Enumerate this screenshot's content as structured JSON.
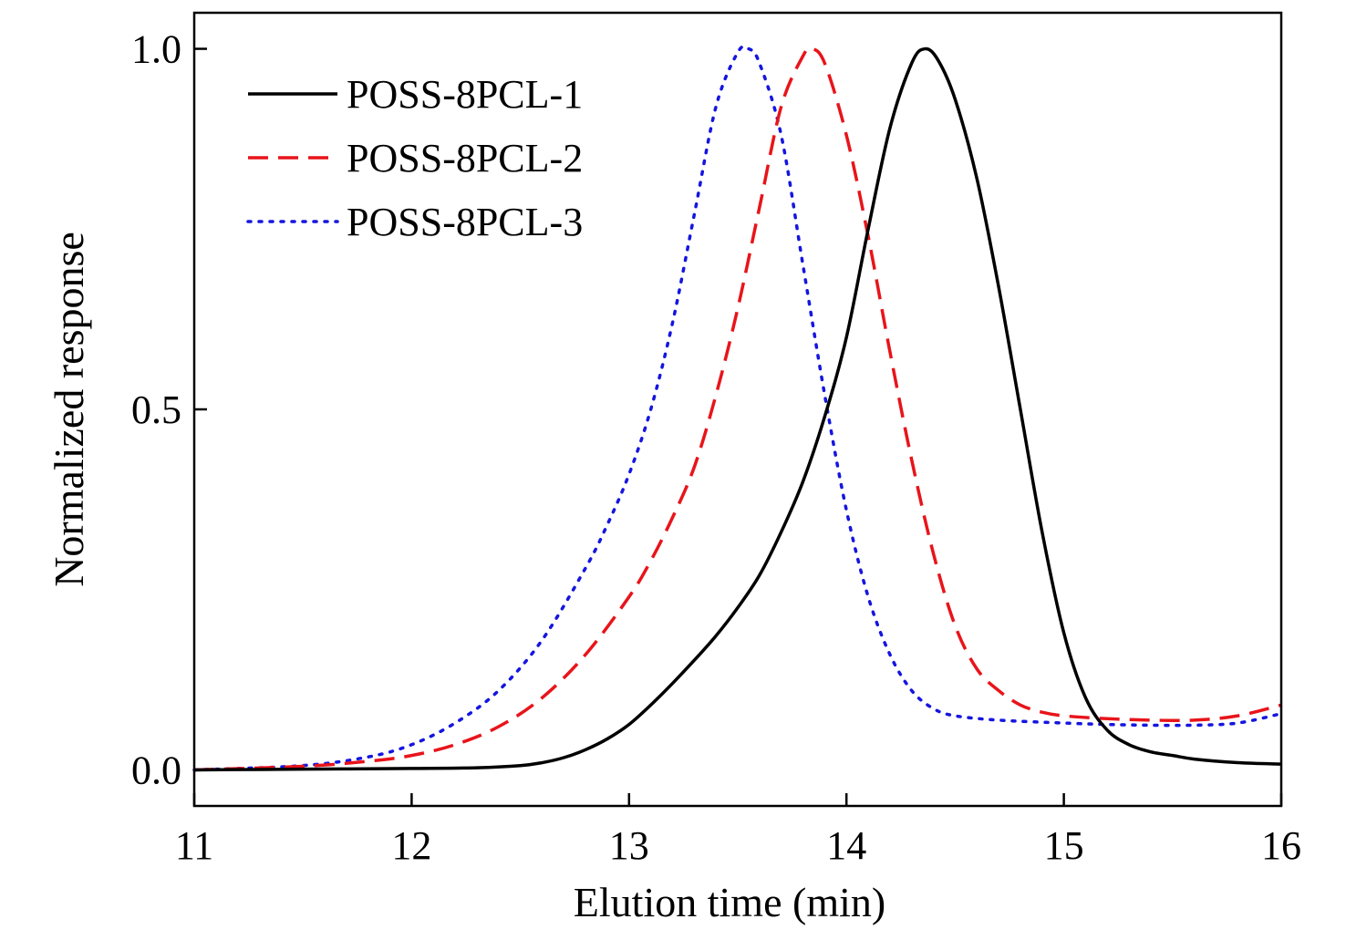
{
  "chart_data": {
    "type": "line",
    "title": "",
    "xlabel": "Elution time (min)",
    "ylabel": "Normalized response",
    "xlim": [
      11,
      16
    ],
    "ylim": [
      -0.05,
      1.05
    ],
    "xticks": [
      11,
      12,
      13,
      14,
      15,
      16
    ],
    "xtick_labels": [
      "11",
      "12",
      "13",
      "14",
      "15",
      "16"
    ],
    "yticks": [
      0.0,
      0.5,
      1.0
    ],
    "ytick_labels": [
      "0.0",
      "0.5",
      "1.0"
    ],
    "grid": false,
    "legend_position": "top-left",
    "series": [
      {
        "name": "POSS-8PCL-1",
        "color": "#000000",
        "style": "solid",
        "x": [
          11.0,
          11.5,
          12.0,
          12.3,
          12.5,
          12.6,
          12.7,
          12.8,
          12.9,
          13.0,
          13.1,
          13.2,
          13.3,
          13.4,
          13.5,
          13.6,
          13.7,
          13.8,
          13.9,
          14.0,
          14.1,
          14.2,
          14.3,
          14.36,
          14.42,
          14.5,
          14.6,
          14.7,
          14.8,
          14.9,
          15.0,
          15.1,
          15.2,
          15.3,
          15.4,
          15.5,
          15.6,
          15.8,
          16.0
        ],
        "y": [
          0.0,
          0.001,
          0.002,
          0.003,
          0.006,
          0.01,
          0.017,
          0.028,
          0.043,
          0.063,
          0.09,
          0.12,
          0.152,
          0.186,
          0.225,
          0.27,
          0.33,
          0.4,
          0.49,
          0.6,
          0.75,
          0.89,
          0.98,
          1.0,
          0.985,
          0.93,
          0.82,
          0.67,
          0.5,
          0.33,
          0.19,
          0.1,
          0.055,
          0.035,
          0.025,
          0.02,
          0.015,
          0.01,
          0.008
        ]
      },
      {
        "name": "POSS-8PCL-2",
        "color": "#e8141a",
        "style": "dashed",
        "x": [
          11.0,
          11.5,
          11.8,
          12.0,
          12.2,
          12.4,
          12.6,
          12.8,
          13.0,
          13.1,
          13.2,
          13.3,
          13.4,
          13.5,
          13.6,
          13.7,
          13.8,
          13.84,
          13.9,
          14.0,
          14.1,
          14.2,
          14.3,
          14.4,
          14.5,
          14.6,
          14.7,
          14.8,
          14.9,
          15.0,
          15.2,
          15.4,
          15.6,
          15.8,
          16.0
        ],
        "y": [
          0.0,
          0.005,
          0.012,
          0.02,
          0.035,
          0.06,
          0.1,
          0.16,
          0.24,
          0.29,
          0.35,
          0.42,
          0.52,
          0.64,
          0.78,
          0.92,
          0.99,
          1.0,
          0.98,
          0.88,
          0.74,
          0.58,
          0.43,
          0.3,
          0.2,
          0.14,
          0.11,
          0.09,
          0.08,
          0.075,
          0.071,
          0.069,
          0.069,
          0.075,
          0.09
        ]
      },
      {
        "name": "POSS-8PCL-3",
        "color": "#1515e0",
        "style": "dotted",
        "x": [
          11.0,
          11.5,
          11.8,
          12.0,
          12.2,
          12.4,
          12.6,
          12.8,
          12.9,
          13.0,
          13.1,
          13.2,
          13.3,
          13.4,
          13.5,
          13.55,
          13.6,
          13.7,
          13.8,
          13.9,
          14.0,
          14.1,
          14.2,
          14.3,
          14.4,
          14.5,
          14.7,
          15.0,
          15.2,
          15.4,
          15.6,
          15.8,
          16.0
        ],
        "y": [
          0.0,
          0.006,
          0.018,
          0.035,
          0.065,
          0.11,
          0.18,
          0.28,
          0.34,
          0.41,
          0.5,
          0.62,
          0.77,
          0.92,
          0.995,
          1.0,
          0.98,
          0.88,
          0.7,
          0.52,
          0.36,
          0.24,
          0.16,
          0.11,
          0.085,
          0.075,
          0.069,
          0.065,
          0.063,
          0.062,
          0.062,
          0.065,
          0.078
        ]
      }
    ]
  }
}
